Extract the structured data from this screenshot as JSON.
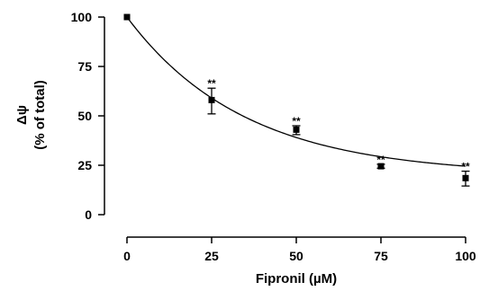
{
  "chart_data": {
    "type": "scatter",
    "xlabel": "Fipronil (µM)",
    "ylabel_line1": "Δψ",
    "ylabel_line2": "(% of total)",
    "xlim": [
      0,
      100
    ],
    "ylim": [
      0,
      100
    ],
    "x_ticks": [
      0,
      25,
      50,
      75,
      100
    ],
    "y_ticks": [
      0,
      25,
      50,
      75,
      100
    ],
    "series": [
      {
        "x": [
          0,
          25,
          50,
          75,
          100
        ],
        "y": [
          100,
          58,
          43,
          24.5,
          18.5
        ],
        "err_low": [
          0,
          7,
          2.5,
          1,
          4
        ],
        "err_high": [
          0,
          6,
          2,
          1,
          3.5
        ],
        "annotations": [
          "",
          "**",
          "**",
          "**",
          "**"
        ]
      }
    ],
    "fit_curve": {
      "type": "exponential-decay",
      "plateau": 20,
      "span": 80,
      "k": 0.0287
    },
    "colors": {
      "axis": "#000000",
      "marker": "#000000",
      "curve": "#000000"
    }
  }
}
